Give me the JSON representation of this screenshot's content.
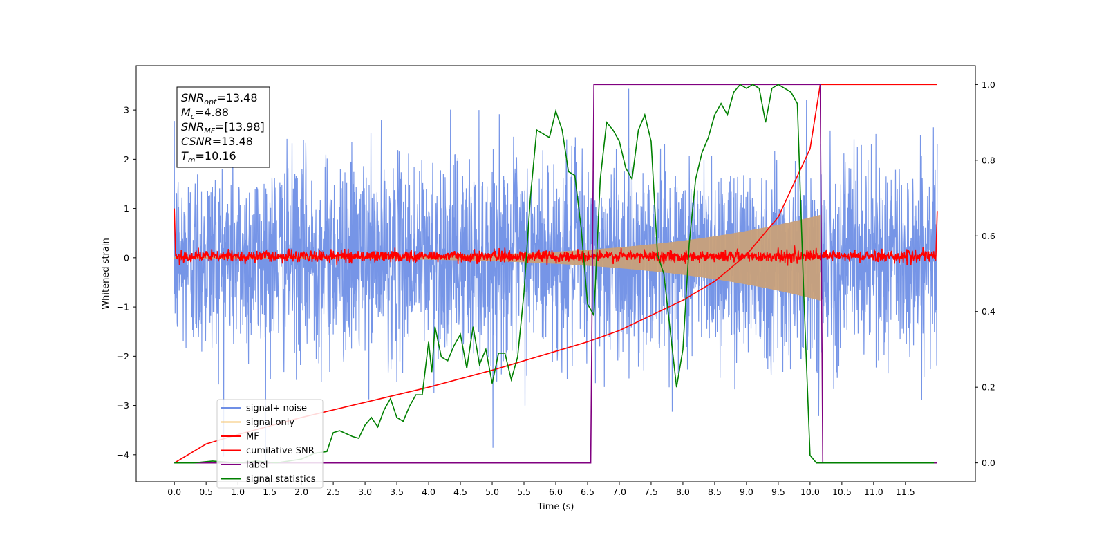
{
  "chart_data": {
    "type": "line",
    "xlabel": "Time (s)",
    "ylabel": "Whitened strain",
    "ylabel_right": "",
    "xlim": [
      -0.6,
      12.6
    ],
    "ylim": [
      -4.55,
      3.9
    ],
    "ylim_right": [
      -0.05,
      1.05
    ],
    "x_ticks": [
      "0.0",
      "0.5",
      "1.0",
      "1.5",
      "2.0",
      "2.5",
      "3.0",
      "3.5",
      "4.0",
      "4.5",
      "5.0",
      "5.5",
      "6.0",
      "6.5",
      "7.0",
      "7.5",
      "8.0",
      "8.5",
      "9.0",
      "9.5",
      "10.0",
      "10.5",
      "11.0",
      "11.5"
    ],
    "y_ticks": [
      "3",
      "2",
      "1",
      "0",
      "−1",
      "−2",
      "−3",
      "−4"
    ],
    "y_ticks_right": [
      "1.0",
      "0.8",
      "0.6",
      "0.4",
      "0.2",
      "0.0"
    ],
    "annotation": {
      "lines": [
        {
          "main": "SNR",
          "sub": "opt",
          "rest": "=13.48"
        },
        {
          "main": "M",
          "sub": "c",
          "rest": "=4.88"
        },
        {
          "main": "SNR",
          "sub": "MF",
          "rest": "=[13.98]"
        },
        {
          "main": "CSNR",
          "sub": "",
          "rest": "=13.48"
        },
        {
          "main": "T",
          "sub": "m",
          "rest": "=10.16"
        }
      ]
    },
    "legend_position": "lower-left",
    "series": [
      {
        "name": "signal+ noise",
        "color": "#6f8fe6",
        "axis": "left",
        "kind": "noise",
        "x_range": [
          0,
          12
        ],
        "std": 1.0
      },
      {
        "name": "signal only",
        "color": "#f5c36b",
        "axis": "left",
        "kind": "chirp",
        "x_range": [
          0,
          10.16
        ],
        "amplitude_end": 0.85
      },
      {
        "name": "MF",
        "color": "#ff0000",
        "axis": "left",
        "kind": "noise",
        "x_range": [
          0,
          12
        ],
        "std": 0.06,
        "edge_value": 1.0
      },
      {
        "name": "cumilative SNR",
        "color": "#ff0000",
        "axis": "right",
        "x": [
          0,
          0.5,
          1.0,
          2.0,
          3.0,
          4.0,
          5.0,
          6.0,
          6.5,
          7.0,
          8.0,
          8.5,
          9.0,
          9.5,
          10.0,
          10.16,
          12.0
        ],
        "y": [
          0.0,
          0.05,
          0.075,
          0.12,
          0.16,
          0.2,
          0.245,
          0.295,
          0.32,
          0.35,
          0.43,
          0.48,
          0.55,
          0.65,
          0.83,
          1.0,
          1.0
        ]
      },
      {
        "name": "label",
        "color": "#800080",
        "axis": "right",
        "x": [
          0,
          6.55,
          6.6,
          10.16,
          10.2,
          12.0
        ],
        "y": [
          0.0,
          0.0,
          1.0,
          1.0,
          0.0,
          0.0
        ]
      },
      {
        "name": "signal statistics",
        "color": "#008000",
        "axis": "right",
        "x": [
          0,
          0.3,
          0.6,
          1.0,
          1.3,
          1.6,
          2.0,
          2.2,
          2.4,
          2.5,
          2.6,
          2.8,
          2.9,
          3.0,
          3.1,
          3.2,
          3.3,
          3.4,
          3.5,
          3.6,
          3.7,
          3.8,
          3.9,
          4.0,
          4.05,
          4.1,
          4.2,
          4.3,
          4.4,
          4.5,
          4.6,
          4.7,
          4.8,
          4.9,
          5.0,
          5.1,
          5.2,
          5.3,
          5.4,
          5.5,
          5.6,
          5.7,
          5.8,
          5.9,
          6.0,
          6.1,
          6.2,
          6.3,
          6.4,
          6.5,
          6.6,
          6.7,
          6.8,
          6.9,
          7.0,
          7.1,
          7.2,
          7.3,
          7.4,
          7.5,
          7.6,
          7.7,
          7.8,
          7.9,
          8.0,
          8.1,
          8.2,
          8.3,
          8.4,
          8.5,
          8.6,
          8.7,
          8.8,
          8.9,
          9.0,
          9.1,
          9.2,
          9.3,
          9.4,
          9.5,
          9.6,
          9.7,
          9.8,
          9.9,
          10.0,
          10.1,
          10.2,
          10.5,
          11.0,
          11.5,
          11.95
        ],
        "y": [
          0.0,
          0.0,
          0.005,
          0.0,
          0.005,
          0.0,
          0.01,
          0.025,
          0.03,
          0.08,
          0.085,
          0.07,
          0.065,
          0.1,
          0.12,
          0.095,
          0.14,
          0.17,
          0.12,
          0.11,
          0.15,
          0.18,
          0.18,
          0.32,
          0.24,
          0.36,
          0.28,
          0.27,
          0.31,
          0.34,
          0.25,
          0.36,
          0.26,
          0.3,
          0.21,
          0.29,
          0.29,
          0.22,
          0.28,
          0.45,
          0.7,
          0.88,
          0.87,
          0.86,
          0.93,
          0.88,
          0.77,
          0.76,
          0.62,
          0.42,
          0.39,
          0.75,
          0.9,
          0.88,
          0.85,
          0.78,
          0.75,
          0.88,
          0.92,
          0.85,
          0.55,
          0.5,
          0.35,
          0.2,
          0.3,
          0.58,
          0.75,
          0.82,
          0.86,
          0.92,
          0.95,
          0.92,
          0.98,
          1.0,
          0.99,
          1.0,
          0.99,
          0.9,
          0.99,
          1.0,
          0.99,
          0.98,
          0.95,
          0.45,
          0.02,
          0.0,
          0.0,
          0.0,
          0.0,
          0.0,
          0.0
        ]
      }
    ]
  }
}
